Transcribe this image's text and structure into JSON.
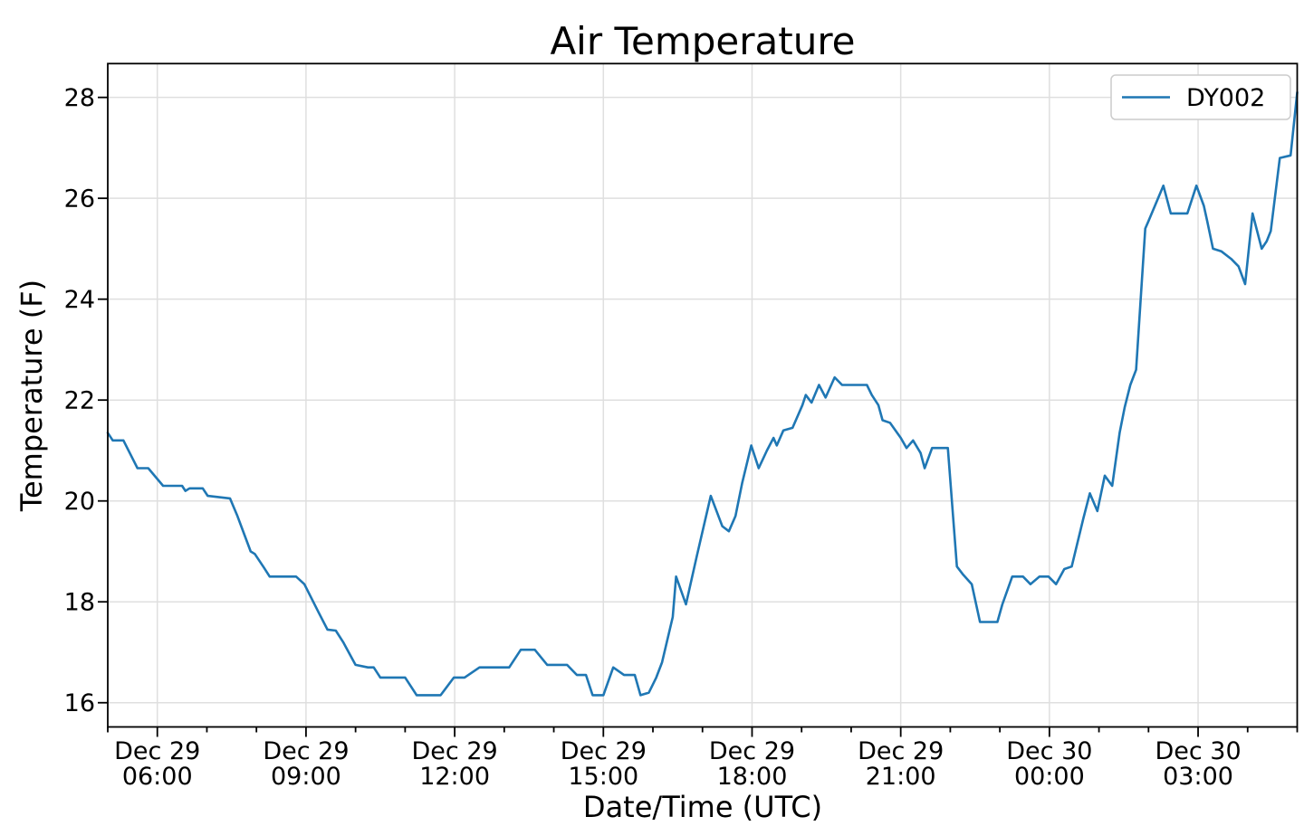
{
  "title": "Air Temperature",
  "xlabel": "Date/Time (UTC)",
  "ylabel": "Temperature (F)",
  "legend": {
    "position": "upper right",
    "entries": [
      {
        "label": "DY002",
        "color": "#1f77b4"
      }
    ]
  },
  "colors": {
    "series": "#1f77b4",
    "grid": "#dfdfdf",
    "spine": "#000000",
    "background": "#ffffff",
    "legend_border": "#cccccc"
  },
  "chart_data": {
    "type": "line",
    "title": "Air Temperature",
    "xlabel": "Date/Time (UTC)",
    "ylabel": "Temperature (F)",
    "grid": true,
    "legend_position": "upper right",
    "x_unit": "minutes since Dec 29 05:00 UTC",
    "x_range_minutes": [
      0,
      1440
    ],
    "ylim": [
      15.52,
      28.67
    ],
    "y_ticks": [
      16,
      18,
      20,
      22,
      24,
      26,
      28
    ],
    "x_minor_tick_every_minutes": 60,
    "x_major_ticks": [
      {
        "t": 60,
        "label": [
          "Dec 29",
          "06:00"
        ]
      },
      {
        "t": 240,
        "label": [
          "Dec 29",
          "09:00"
        ]
      },
      {
        "t": 420,
        "label": [
          "Dec 29",
          "12:00"
        ]
      },
      {
        "t": 600,
        "label": [
          "Dec 29",
          "15:00"
        ]
      },
      {
        "t": 780,
        "label": [
          "Dec 29",
          "18:00"
        ]
      },
      {
        "t": 960,
        "label": [
          "Dec 29",
          "21:00"
        ]
      },
      {
        "t": 1140,
        "label": [
          "Dec 30",
          "00:00"
        ]
      },
      {
        "t": 1320,
        "label": [
          "Dec 30",
          "03:00"
        ]
      }
    ],
    "series": [
      {
        "name": "DY002",
        "color": "#1f77b4",
        "points": [
          [
            0,
            21.35
          ],
          [
            6,
            21.2
          ],
          [
            19,
            21.2
          ],
          [
            36,
            20.65
          ],
          [
            49,
            20.65
          ],
          [
            67,
            20.3
          ],
          [
            90,
            20.3
          ],
          [
            94,
            20.2
          ],
          [
            99,
            20.25
          ],
          [
            115,
            20.25
          ],
          [
            121,
            20.1
          ],
          [
            148,
            20.05
          ],
          [
            157,
            19.7
          ],
          [
            165,
            19.35
          ],
          [
            173,
            19.0
          ],
          [
            178,
            18.95
          ],
          [
            189,
            18.68
          ],
          [
            196,
            18.5
          ],
          [
            228,
            18.5
          ],
          [
            238,
            18.35
          ],
          [
            255,
            17.8
          ],
          [
            266,
            17.45
          ],
          [
            276,
            17.43
          ],
          [
            285,
            17.2
          ],
          [
            300,
            16.75
          ],
          [
            315,
            16.7
          ],
          [
            322,
            16.7
          ],
          [
            330,
            16.5
          ],
          [
            360,
            16.5
          ],
          [
            374,
            16.15
          ],
          [
            403,
            16.15
          ],
          [
            419,
            16.5
          ],
          [
            432,
            16.5
          ],
          [
            450,
            16.7
          ],
          [
            486,
            16.7
          ],
          [
            500,
            17.05
          ],
          [
            517,
            17.05
          ],
          [
            532,
            16.75
          ],
          [
            556,
            16.75
          ],
          [
            568,
            16.55
          ],
          [
            579,
            16.55
          ],
          [
            587,
            16.15
          ],
          [
            600,
            16.15
          ],
          [
            612,
            16.7
          ],
          [
            625,
            16.55
          ],
          [
            638,
            16.55
          ],
          [
            645,
            16.15
          ],
          [
            655,
            16.2
          ],
          [
            664,
            16.5
          ],
          [
            671,
            16.8
          ],
          [
            684,
            17.7
          ],
          [
            688,
            18.5
          ],
          [
            700,
            17.95
          ],
          [
            713,
            18.9
          ],
          [
            730,
            20.1
          ],
          [
            744,
            19.5
          ],
          [
            752,
            19.4
          ],
          [
            760,
            19.7
          ],
          [
            768,
            20.35
          ],
          [
            779,
            21.1
          ],
          [
            788,
            20.65
          ],
          [
            798,
            21.0
          ],
          [
            806,
            21.25
          ],
          [
            810,
            21.1
          ],
          [
            818,
            21.4
          ],
          [
            829,
            21.45
          ],
          [
            841,
            21.9
          ],
          [
            845,
            22.1
          ],
          [
            852,
            21.95
          ],
          [
            861,
            22.3
          ],
          [
            869,
            22.05
          ],
          [
            880,
            22.45
          ],
          [
            889,
            22.3
          ],
          [
            919,
            22.3
          ],
          [
            925,
            22.1
          ],
          [
            933,
            21.9
          ],
          [
            938,
            21.6
          ],
          [
            947,
            21.55
          ],
          [
            960,
            21.25
          ],
          [
            967,
            21.05
          ],
          [
            975,
            21.2
          ],
          [
            984,
            20.95
          ],
          [
            989,
            20.65
          ],
          [
            998,
            21.05
          ],
          [
            1017,
            21.05
          ],
          [
            1028,
            18.7
          ],
          [
            1035,
            18.55
          ],
          [
            1046,
            18.35
          ],
          [
            1056,
            17.6
          ],
          [
            1077,
            17.6
          ],
          [
            1083,
            17.95
          ],
          [
            1095,
            18.5
          ],
          [
            1108,
            18.5
          ],
          [
            1117,
            18.35
          ],
          [
            1128,
            18.5
          ],
          [
            1139,
            18.5
          ],
          [
            1148,
            18.35
          ],
          [
            1158,
            18.65
          ],
          [
            1167,
            18.7
          ],
          [
            1181,
            19.65
          ],
          [
            1189,
            20.15
          ],
          [
            1198,
            19.8
          ],
          [
            1207,
            20.5
          ],
          [
            1216,
            20.3
          ],
          [
            1225,
            21.35
          ],
          [
            1231,
            21.85
          ],
          [
            1238,
            22.3
          ],
          [
            1245,
            22.6
          ],
          [
            1256,
            25.4
          ],
          [
            1260,
            25.55
          ],
          [
            1278,
            26.25
          ],
          [
            1287,
            25.7
          ],
          [
            1307,
            25.7
          ],
          [
            1318,
            26.25
          ],
          [
            1327,
            25.85
          ],
          [
            1331,
            25.55
          ],
          [
            1338,
            25.0
          ],
          [
            1348,
            24.95
          ],
          [
            1360,
            24.8
          ],
          [
            1369,
            24.65
          ],
          [
            1377,
            24.3
          ],
          [
            1386,
            25.7
          ],
          [
            1397,
            25.0
          ],
          [
            1403,
            25.15
          ],
          [
            1408,
            25.35
          ],
          [
            1419,
            26.8
          ],
          [
            1432,
            26.85
          ],
          [
            1440,
            28.1
          ]
        ]
      }
    ]
  }
}
